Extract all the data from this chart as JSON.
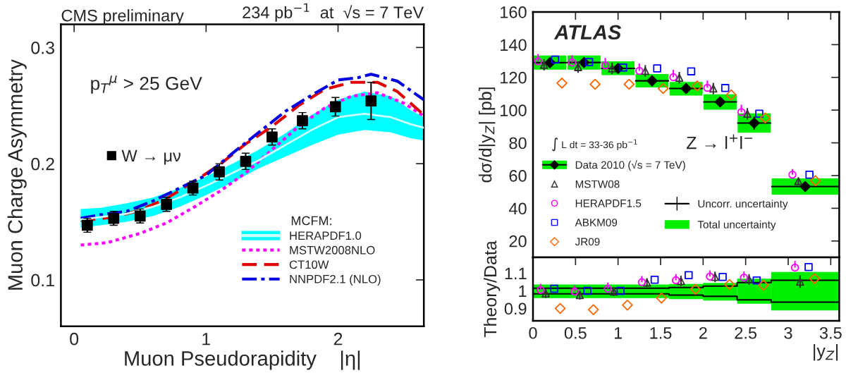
{
  "chart_data": [
    {
      "type": "line",
      "title": "CMS preliminary",
      "xlabel": "Muon Pseudorapidity    |η|",
      "ylabel": "Muon Charge Asymmetry",
      "legend_title": "MCFM:",
      "legend": "lower right",
      "annotations": [
        "234 pb$^{−1}$  at  √s = 7 TeV",
        "p$_{T}$$^{μ}$ > 25 GeV"
      ],
      "xlim": [
        -0.1,
        2.65
      ],
      "xticks": [
        0,
        1,
        2
      ],
      "ylim": [
        0.06,
        0.32
      ],
      "yticks": [
        0.1,
        0.2,
        0.3
      ],
      "series": [
        {
          "name": "HERAPDF1.0",
          "color": "#ccffff",
          "line_style": "solid",
          "x": [
            0.05,
            0.2,
            0.4,
            0.6,
            0.8,
            1.0,
            1.2,
            1.4,
            1.6,
            1.8,
            2.0,
            2.2,
            2.4,
            2.55,
            2.65
          ],
          "values": [
            0.152,
            0.154,
            0.157,
            0.163,
            0.171,
            0.181,
            0.192,
            0.203,
            0.216,
            0.229,
            0.24,
            0.243,
            0.24,
            0.234,
            0.231
          ],
          "lower": [
            0.145,
            0.147,
            0.15,
            0.155,
            0.163,
            0.173,
            0.184,
            0.196,
            0.206,
            0.216,
            0.225,
            0.229,
            0.227,
            0.222,
            0.22
          ],
          "upper": [
            0.161,
            0.162,
            0.166,
            0.171,
            0.179,
            0.189,
            0.2,
            0.212,
            0.226,
            0.242,
            0.255,
            0.262,
            0.258,
            0.246,
            0.24
          ]
        },
        {
          "name": "MSTW2008NLO",
          "color": "#ff00ff",
          "line_style": "dotted",
          "x": [
            0.05,
            0.25,
            0.5,
            0.7,
            0.9,
            1.1,
            1.3,
            1.5,
            1.7,
            1.9,
            2.1,
            2.3,
            2.5,
            2.65
          ],
          "values": [
            0.13,
            0.132,
            0.14,
            0.149,
            0.162,
            0.176,
            0.192,
            0.212,
            0.232,
            0.248,
            0.258,
            0.261,
            0.252,
            0.241
          ]
        },
        {
          "name": "CT10W",
          "color": "#e00000",
          "line_style": "dashed",
          "x": [
            0.05,
            0.3,
            0.5,
            0.7,
            0.9,
            1.1,
            1.3,
            1.5,
            1.7,
            1.9,
            2.1,
            2.3,
            2.45,
            2.65
          ],
          "values": [
            0.151,
            0.154,
            0.16,
            0.17,
            0.184,
            0.199,
            0.217,
            0.232,
            0.25,
            0.264,
            0.27,
            0.27,
            0.262,
            0.242
          ]
        },
        {
          "name": "NNPDF2.1 (NLO)",
          "color": "#0000e0",
          "line_style": "dashdot",
          "x": [
            0.05,
            0.2,
            0.4,
            0.6,
            0.8,
            1.0,
            1.2,
            1.4,
            1.6,
            1.8,
            2.0,
            2.15,
            2.25,
            2.45,
            2.65
          ],
          "values": [
            0.153,
            0.156,
            0.159,
            0.168,
            0.179,
            0.19,
            0.209,
            0.227,
            0.245,
            0.259,
            0.272,
            0.274,
            0.277,
            0.271,
            0.255
          ]
        },
        {
          "name": "W → μν",
          "type": "scatter",
          "marker": "square",
          "color": "#000000",
          "x": [
            0.1,
            0.3,
            0.5,
            0.7,
            0.9,
            1.1,
            1.3,
            1.5,
            1.73,
            1.98,
            2.25
          ],
          "values": [
            0.147,
            0.153,
            0.155,
            0.165,
            0.179,
            0.193,
            0.202,
            0.223,
            0.237,
            0.249,
            0.254
          ],
          "errors": [
            0.006,
            0.006,
            0.006,
            0.006,
            0.006,
            0.007,
            0.007,
            0.007,
            0.007,
            0.008,
            0.016
          ]
        }
      ]
    },
    {
      "type": "scatter",
      "ylabel": "dσ/d|y$_{Z}$| [pb]",
      "legend": "lower left",
      "tick_labels": "y",
      "annotations": [
        "ATLAS",
        "∫ L dt = 33-36 pb$^{−1}$",
        "Z → l$^{+}$l$^{−}$",
        "Uncorr. uncertainty",
        "Total uncertainty"
      ],
      "xlim": [
        0,
        3.6
      ],
      "xticks": [
        0,
        0.5,
        1,
        1.5,
        2,
        2.5,
        3,
        3.5
      ],
      "ylim": [
        10,
        160
      ],
      "yticks": [
        20,
        40,
        60,
        80,
        100,
        120,
        140,
        160
      ],
      "series": [
        {
          "type": "bar",
          "color": "#00ee00",
          "x": [
            0.2,
            0.6,
            1.0,
            1.4,
            1.8,
            2.2,
            2.6,
            3.2
          ],
          "base": [
            124.4,
            124.4,
            121.1,
            113.6,
            108.6,
            100.0,
            85.9,
            48.0
          ],
          "values": [
            9.3,
            9.3,
            9.0,
            8.8,
            8.9,
            10.0,
            12.4,
            10.6
          ]
        },
        {
          "name": "Data 2010 (√s = 7 TeV)",
          "marker": "diamond",
          "color": "#000000",
          "x": [
            0.2,
            0.6,
            1.0,
            1.4,
            1.8,
            2.2,
            2.6,
            3.2
          ],
          "values": [
            129.0,
            129.1,
            125.5,
            117.9,
            113.2,
            105.0,
            92.1,
            53.3
          ],
          "errors": [
            1.5,
            1.5,
            1.5,
            2,
            2,
            2.5,
            4,
            3
          ],
          "xerrors": [
            0.2,
            0.2,
            0.2,
            0.2,
            0.2,
            0.2,
            0.2,
            0.4
          ]
        },
        {
          "name": "MSTW08",
          "marker": "triangle",
          "color": "#333333",
          "x": [
            0.13,
            0.53,
            0.93,
            1.32,
            1.72,
            2.12,
            2.52,
            3.12
          ],
          "values": [
            127.7,
            126.3,
            125.5,
            124.0,
            119.8,
            113.2,
            97.8,
            56.6
          ],
          "errors": [
            3.5,
            3.5,
            3.5,
            3.5,
            3.5,
            3.5,
            3.5,
            2
          ]
        },
        {
          "name": "HERAPDF1.5",
          "marker": "circle",
          "color": "#ff00ff",
          "x": [
            0.06,
            0.46,
            0.85,
            1.25,
            1.65,
            2.05,
            2.45,
            3.05
          ],
          "values": [
            129.8,
            129.1,
            127.3,
            124.0,
            120.1,
            113.6,
            98.8,
            60.5
          ],
          "errors": [
            [
              129.8,
              134.3
            ],
            [
              129.1,
              133.6
            ],
            [
              127.3,
              131.8
            ],
            [
              124.0,
              128.5
            ],
            [
              120.1,
              124.6
            ],
            [
              113.6,
              118.1
            ],
            [
              98.8,
              103.3
            ],
            [
              60.5,
              64.0
            ]
          ]
        },
        {
          "name": "ABKM09",
          "marker": "square",
          "color": "#0000ff",
          "x": [
            0.26,
            0.66,
            1.06,
            1.46,
            1.86,
            2.26,
            2.66,
            3.25
          ],
          "values": [
            130.9,
            129.4,
            126.0,
            125.5,
            123.7,
            113.5,
            97.8,
            60.5
          ]
        },
        {
          "name": "JR09",
          "marker": "diamond",
          "color": "#ff6600",
          "x": [
            0.34,
            0.73,
            1.13,
            1.53,
            1.93,
            2.33,
            2.73,
            3.32
          ],
          "values": [
            116.5,
            115.8,
            115.8,
            113.2,
            114.8,
            109.3,
            95.2,
            56.9
          ]
        }
      ]
    },
    {
      "type": "scatter",
      "xlabel": "|y$_{Z}$|",
      "ylabel": "Theory/Data",
      "xlim": [
        0,
        3.6
      ],
      "xticks": [
        0,
        0.5,
        1,
        1.5,
        2,
        2.5,
        3,
        3.5
      ],
      "ylim": [
        0.83,
        1.19
      ],
      "yticks": [
        0.9,
        1,
        1.1
      ],
      "series": [
        {
          "type": "bar",
          "color": "#00ee00",
          "x": [
            0.8,
            1.8,
            2.2,
            2.6,
            3.2
          ],
          "base": [
            0.959,
            0.953,
            0.945,
            0.927,
            0.889
          ],
          "values": [
            0.077,
            0.086,
            0.1,
            0.142,
            0.218
          ]
        },
        {
          "type": "step",
          "color": "#000000",
          "x": [
            0,
            0.4,
            0.8,
            1.2,
            1.6,
            2.0,
            2.4,
            2.8,
            3.6
          ],
          "values": [
            1.015,
            1.015,
            1.015,
            1.015,
            1.019,
            1.027,
            1.047,
            1.06,
            1.06
          ]
        },
        {
          "type": "step",
          "color": "#000000",
          "x": [
            0,
            0.4,
            0.8,
            1.2,
            1.6,
            2.0,
            2.4,
            2.8,
            3.6
          ],
          "values": [
            0.983,
            0.983,
            0.983,
            0.983,
            0.976,
            0.969,
            0.949,
            0.936,
            0.936
          ]
        },
        {
          "marker": "triangle",
          "color": "#333333",
          "x": [
            0.15,
            0.55,
            0.95,
            1.34,
            1.74,
            2.14,
            2.54,
            3.14
          ],
          "values": [
            0.985,
            0.976,
            0.996,
            1.047,
            1.056,
            1.079,
            1.065,
            1.052
          ],
          "errors": [
            0.025,
            0.025,
            0.025,
            0.025,
            0.03,
            0.03,
            0.03,
            0.035
          ]
        },
        {
          "marker": "circle",
          "color": "#ff00ff",
          "x": [
            0.09,
            0.49,
            0.88,
            1.28,
            1.68,
            2.08,
            2.48,
            3.08
          ],
          "values": [
            1.005,
            0.996,
            1.012,
            1.049,
            1.06,
            1.081,
            1.075,
            1.132
          ],
          "errors": [
            [
              1.005,
              1.04
            ],
            [
              0.996,
              1.031
            ],
            [
              1.012,
              1.047
            ],
            [
              1.049,
              1.084
            ],
            [
              1.06,
              1.095
            ],
            [
              1.081,
              1.116
            ],
            [
              1.075,
              1.11
            ],
            [
              1.132,
              1.17
            ]
          ]
        },
        {
          "marker": "square",
          "color": "#0000ff",
          "x": [
            0.25,
            0.64,
            1.03,
            1.43,
            1.83,
            2.23,
            2.63,
            3.24
          ],
          "values": [
            1.012,
            1.0,
            1.0,
            1.063,
            1.089,
            1.079,
            1.059,
            1.135
          ]
        },
        {
          "marker": "diamond",
          "color": "#ff6600",
          "x": [
            0.32,
            0.71,
            1.11,
            1.51,
            1.91,
            2.31,
            2.71,
            3.31
          ],
          "values": [
            0.9,
            0.893,
            0.919,
            0.959,
            1.009,
            1.036,
            1.032,
            1.069
          ]
        }
      ]
    }
  ]
}
